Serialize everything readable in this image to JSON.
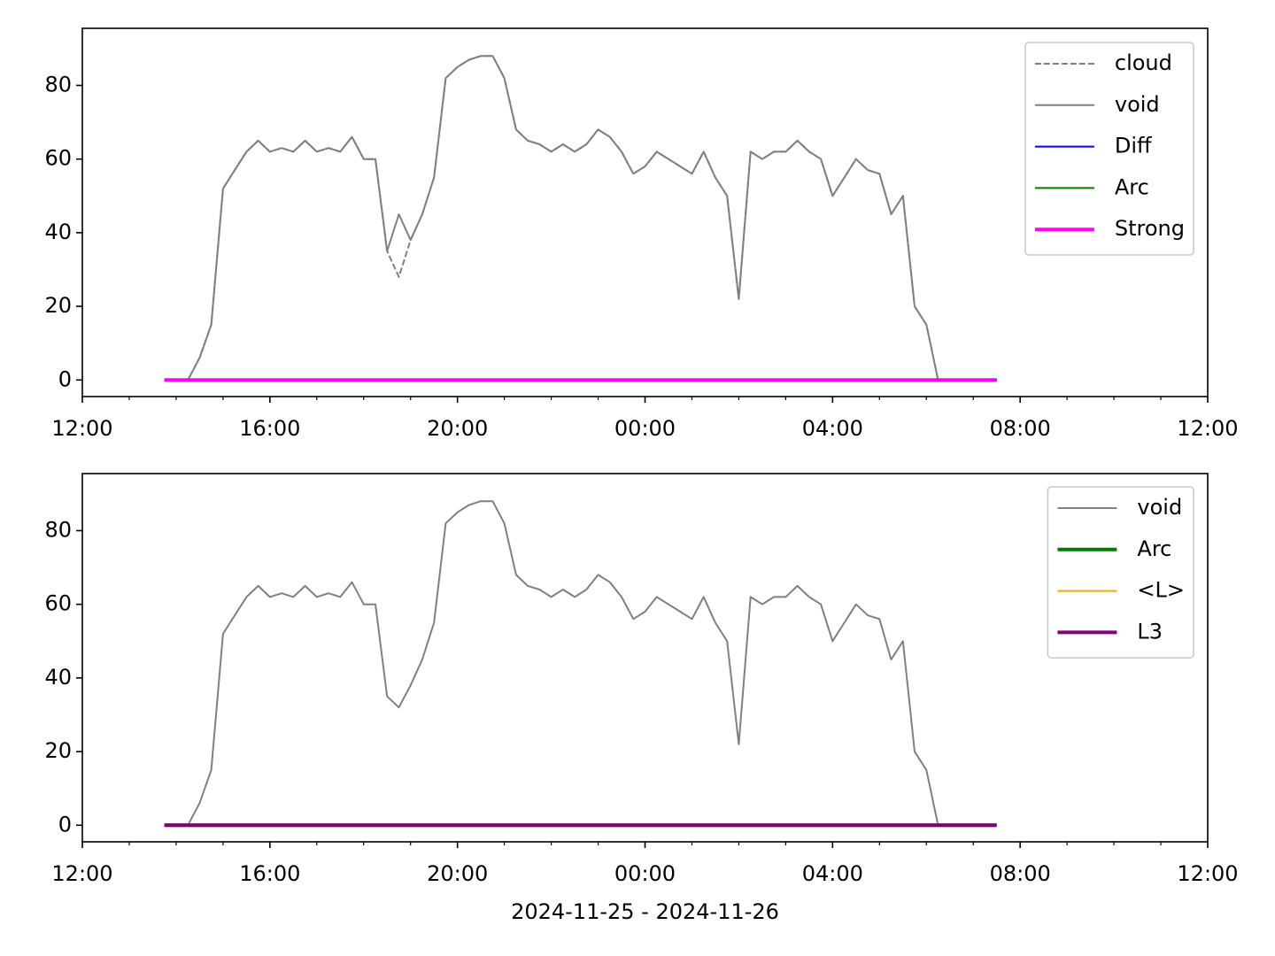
{
  "chart_data": [
    {
      "type": "line",
      "legend": "upper right",
      "x": [
        "2024-11-25T13:45",
        "2024-11-25T14:00",
        "2024-11-25T14:15",
        "2024-11-25T14:30",
        "2024-11-25T14:45",
        "2024-11-25T15:00",
        "2024-11-25T15:15",
        "2024-11-25T15:30",
        "2024-11-25T15:45",
        "2024-11-25T16:00",
        "2024-11-25T16:15",
        "2024-11-25T16:30",
        "2024-11-25T16:45",
        "2024-11-25T17:00",
        "2024-11-25T17:15",
        "2024-11-25T17:30",
        "2024-11-25T17:45",
        "2024-11-25T18:00",
        "2024-11-25T18:15",
        "2024-11-25T18:30",
        "2024-11-25T18:45",
        "2024-11-25T19:00",
        "2024-11-25T19:15",
        "2024-11-25T19:30",
        "2024-11-25T19:45",
        "2024-11-25T20:00",
        "2024-11-25T20:15",
        "2024-11-25T20:30",
        "2024-11-25T20:45",
        "2024-11-25T21:00",
        "2024-11-25T21:15",
        "2024-11-25T21:30",
        "2024-11-25T21:45",
        "2024-11-25T22:00",
        "2024-11-25T22:15",
        "2024-11-25T22:30",
        "2024-11-25T22:45",
        "2024-11-25T23:00",
        "2024-11-25T23:15",
        "2024-11-25T23:30",
        "2024-11-25T23:45",
        "2024-11-26T00:00",
        "2024-11-26T00:15",
        "2024-11-26T00:30",
        "2024-11-26T00:45",
        "2024-11-26T01:00",
        "2024-11-26T01:15",
        "2024-11-26T01:30",
        "2024-11-26T01:45",
        "2024-11-26T02:00",
        "2024-11-26T02:15",
        "2024-11-26T02:30",
        "2024-11-26T02:45",
        "2024-11-26T03:00",
        "2024-11-26T03:15",
        "2024-11-26T03:30",
        "2024-11-26T03:45",
        "2024-11-26T04:00",
        "2024-11-26T04:15",
        "2024-11-26T04:30",
        "2024-11-26T04:45",
        "2024-11-26T05:00",
        "2024-11-26T05:15",
        "2024-11-26T05:30",
        "2024-11-26T05:45",
        "2024-11-26T06:00",
        "2024-11-26T06:15",
        "2024-11-26T06:30",
        "2024-11-26T06:45",
        "2024-11-26T07:00",
        "2024-11-26T07:15",
        "2024-11-26T07:30"
      ],
      "series": [
        {
          "name": "cloud",
          "color": "#808080",
          "style": "dashed",
          "width": 2,
          "values": [
            0,
            0,
            0,
            6,
            15,
            52,
            57,
            62,
            65,
            62,
            63,
            62,
            65,
            62,
            63,
            62,
            66,
            60,
            60,
            35,
            28,
            38,
            45,
            55,
            82,
            85,
            87,
            88,
            88,
            82,
            68,
            65,
            64,
            62,
            64,
            62,
            64,
            68,
            66,
            62,
            56,
            58,
            62,
            60,
            58,
            56,
            62,
            55,
            50,
            22,
            62,
            60,
            62,
            62,
            65,
            62,
            60,
            50,
            55,
            60,
            57,
            56,
            45,
            50,
            20,
            15,
            0,
            0,
            0,
            0,
            0,
            0
          ]
        },
        {
          "name": "void",
          "color": "#808080",
          "width": 2,
          "values": [
            0,
            0,
            0,
            6,
            15,
            52,
            57,
            62,
            65,
            62,
            63,
            62,
            65,
            62,
            63,
            62,
            66,
            60,
            60,
            35,
            45,
            38,
            45,
            55,
            82,
            85,
            87,
            88,
            88,
            82,
            68,
            65,
            64,
            62,
            64,
            62,
            64,
            68,
            66,
            62,
            56,
            58,
            62,
            60,
            58,
            56,
            62,
            55,
            50,
            22,
            62,
            60,
            62,
            62,
            65,
            62,
            60,
            50,
            55,
            60,
            57,
            56,
            45,
            50,
            20,
            15,
            0,
            0,
            0,
            0,
            0,
            0
          ]
        },
        {
          "name": "Diff",
          "color": "#0000ff",
          "width": 2,
          "x": [
            "2024-11-25T13:45",
            "2024-11-26T07:30"
          ],
          "values": [
            0,
            0
          ]
        },
        {
          "name": "Arc",
          "color": "#008000",
          "width": 2,
          "x": [
            "2024-11-25T13:45",
            "2024-11-26T07:30"
          ],
          "values": [
            0,
            0
          ]
        },
        {
          "name": "Strong",
          "color": "#ff00ff",
          "width": 4,
          "x": [
            "2024-11-25T13:45",
            "2024-11-26T07:30"
          ],
          "values": [
            0,
            0
          ]
        }
      ],
      "xlim": [
        "2024-11-25T12:00",
        "2024-11-26T12:00"
      ],
      "xticks": [
        {
          "value": "2024-11-25T12:00",
          "label": "12:00"
        },
        {
          "value": "2024-11-25T16:00",
          "label": "16:00"
        },
        {
          "value": "2024-11-25T20:00",
          "label": "20:00"
        },
        {
          "value": "2024-11-26T00:00",
          "label": "00:00"
        },
        {
          "value": "2024-11-26T04:00",
          "label": "04:00"
        },
        {
          "value": "2024-11-26T08:00",
          "label": "08:00"
        },
        {
          "value": "2024-11-26T12:00",
          "label": "12:00"
        }
      ],
      "xminorticks": [
        "2024-11-25T13:00",
        "2024-11-25T14:00",
        "2024-11-25T15:00",
        "2024-11-25T17:00",
        "2024-11-25T18:00",
        "2024-11-25T19:00",
        "2024-11-25T21:00",
        "2024-11-25T22:00",
        "2024-11-25T23:00",
        "2024-11-26T01:00",
        "2024-11-26T02:00",
        "2024-11-26T03:00",
        "2024-11-26T05:00",
        "2024-11-26T06:00",
        "2024-11-26T07:00",
        "2024-11-26T09:00",
        "2024-11-26T10:00",
        "2024-11-26T11:00"
      ],
      "ylim": [
        -4.5,
        95.5
      ],
      "yticks": [
        0,
        20,
        40,
        60,
        80
      ]
    },
    {
      "type": "line",
      "legend": "upper right",
      "xlabel": "2024-11-25 - 2024-11-26",
      "x": [
        "2024-11-25T13:45",
        "2024-11-25T14:00",
        "2024-11-25T14:15",
        "2024-11-25T14:30",
        "2024-11-25T14:45",
        "2024-11-25T15:00",
        "2024-11-25T15:15",
        "2024-11-25T15:30",
        "2024-11-25T15:45",
        "2024-11-25T16:00",
        "2024-11-25T16:15",
        "2024-11-25T16:30",
        "2024-11-25T16:45",
        "2024-11-25T17:00",
        "2024-11-25T17:15",
        "2024-11-25T17:30",
        "2024-11-25T17:45",
        "2024-11-25T18:00",
        "2024-11-25T18:15",
        "2024-11-25T18:30",
        "2024-11-25T18:45",
        "2024-11-25T19:00",
        "2024-11-25T19:15",
        "2024-11-25T19:30",
        "2024-11-25T19:45",
        "2024-11-25T20:00",
        "2024-11-25T20:15",
        "2024-11-25T20:30",
        "2024-11-25T20:45",
        "2024-11-25T21:00",
        "2024-11-25T21:15",
        "2024-11-25T21:30",
        "2024-11-25T21:45",
        "2024-11-25T22:00",
        "2024-11-25T22:15",
        "2024-11-25T22:30",
        "2024-11-25T22:45",
        "2024-11-25T23:00",
        "2024-11-25T23:15",
        "2024-11-25T23:30",
        "2024-11-25T23:45",
        "2024-11-26T00:00",
        "2024-11-26T00:15",
        "2024-11-26T00:30",
        "2024-11-26T00:45",
        "2024-11-26T01:00",
        "2024-11-26T01:15",
        "2024-11-26T01:30",
        "2024-11-26T01:45",
        "2024-11-26T02:00",
        "2024-11-26T02:15",
        "2024-11-26T02:30",
        "2024-11-26T02:45",
        "2024-11-26T03:00",
        "2024-11-26T03:15",
        "2024-11-26T03:30",
        "2024-11-26T03:45",
        "2024-11-26T04:00",
        "2024-11-26T04:15",
        "2024-11-26T04:30",
        "2024-11-26T04:45",
        "2024-11-26T05:00",
        "2024-11-26T05:15",
        "2024-11-26T05:30",
        "2024-11-26T05:45",
        "2024-11-26T06:00",
        "2024-11-26T06:15",
        "2024-11-26T06:30",
        "2024-11-26T06:45",
        "2024-11-26T07:00",
        "2024-11-26T07:15",
        "2024-11-26T07:30"
      ],
      "series": [
        {
          "name": "void",
          "color": "#808080",
          "width": 2,
          "values": [
            0,
            0,
            0,
            6,
            15,
            52,
            57,
            62,
            65,
            62,
            63,
            62,
            65,
            62,
            63,
            62,
            66,
            60,
            60,
            35,
            32,
            38,
            45,
            55,
            82,
            85,
            87,
            88,
            88,
            82,
            68,
            65,
            64,
            62,
            64,
            62,
            64,
            68,
            66,
            62,
            56,
            58,
            62,
            60,
            58,
            56,
            62,
            55,
            50,
            22,
            62,
            60,
            62,
            62,
            65,
            62,
            60,
            50,
            55,
            60,
            57,
            56,
            45,
            50,
            20,
            15,
            0,
            0,
            0,
            0,
            0,
            0
          ]
        },
        {
          "name": "Arc",
          "color": "#008000",
          "width": 4,
          "x": [
            "2024-11-25T13:45",
            "2024-11-26T07:30"
          ],
          "values": [
            0,
            0
          ]
        },
        {
          "name": "<L>",
          "color": "#ffa500",
          "width": 2,
          "x": [
            "2024-11-25T13:45",
            "2024-11-26T07:30"
          ],
          "values": [
            0,
            0
          ]
        },
        {
          "name": "L3",
          "color": "#800080",
          "width": 4,
          "x": [
            "2024-11-25T13:45",
            "2024-11-26T07:30"
          ],
          "values": [
            0,
            0
          ]
        }
      ],
      "xlim": [
        "2024-11-25T12:00",
        "2024-11-26T12:00"
      ],
      "xticks": [
        {
          "value": "2024-11-25T12:00",
          "label": "12:00"
        },
        {
          "value": "2024-11-25T16:00",
          "label": "16:00"
        },
        {
          "value": "2024-11-25T20:00",
          "label": "20:00"
        },
        {
          "value": "2024-11-26T00:00",
          "label": "00:00"
        },
        {
          "value": "2024-11-26T04:00",
          "label": "04:00"
        },
        {
          "value": "2024-11-26T08:00",
          "label": "08:00"
        },
        {
          "value": "2024-11-26T12:00",
          "label": "12:00"
        }
      ],
      "xminorticks": [
        "2024-11-25T13:00",
        "2024-11-25T14:00",
        "2024-11-25T15:00",
        "2024-11-25T17:00",
        "2024-11-25T18:00",
        "2024-11-25T19:00",
        "2024-11-25T21:00",
        "2024-11-25T22:00",
        "2024-11-25T23:00",
        "2024-11-26T01:00",
        "2024-11-26T02:00",
        "2024-11-26T03:00",
        "2024-11-26T05:00",
        "2024-11-26T06:00",
        "2024-11-26T07:00",
        "2024-11-26T09:00",
        "2024-11-26T10:00",
        "2024-11-26T11:00"
      ],
      "ylim": [
        -4.5,
        95.5
      ],
      "yticks": [
        0,
        20,
        40,
        60,
        80
      ]
    }
  ]
}
